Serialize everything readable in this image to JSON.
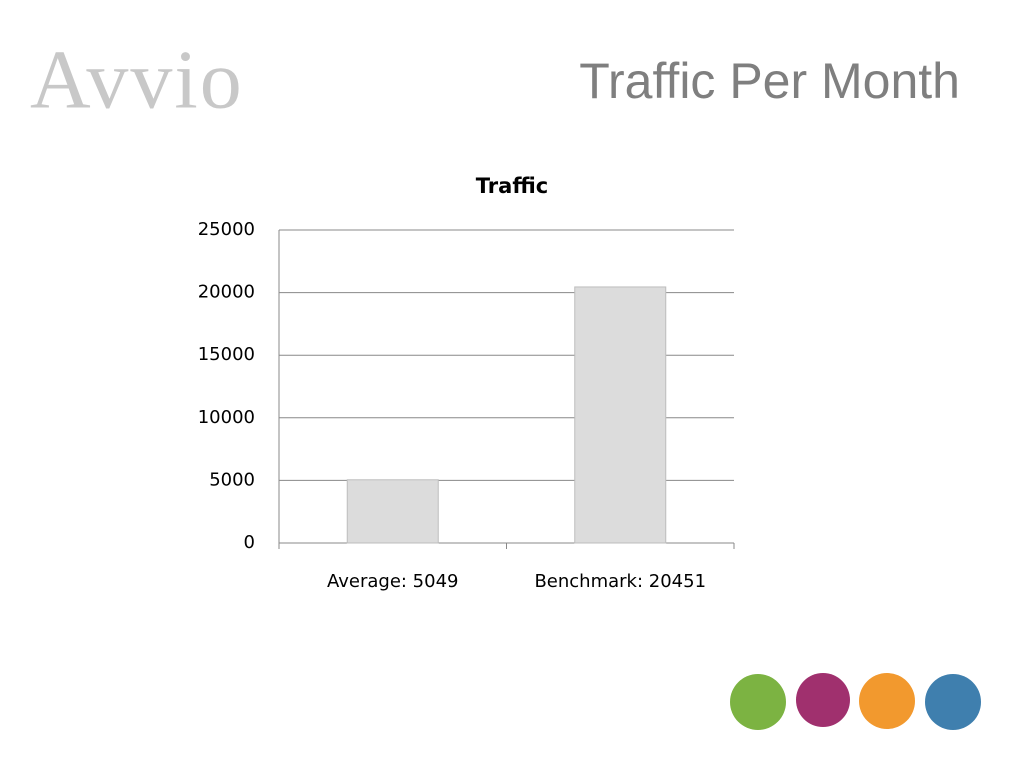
{
  "slide": {
    "title": "Traffic Per Month",
    "logo": "Avvio"
  },
  "chart_data": {
    "type": "bar",
    "title": "Traffic",
    "categories": [
      "Average: 5049",
      "Benchmark: 20451"
    ],
    "values": [
      5049,
      20451
    ],
    "color": "#dcdcdc",
    "ylim": [
      0,
      25000
    ],
    "yticks": [
      0,
      5000,
      10000,
      15000,
      20000,
      25000
    ],
    "grid": true
  }
}
